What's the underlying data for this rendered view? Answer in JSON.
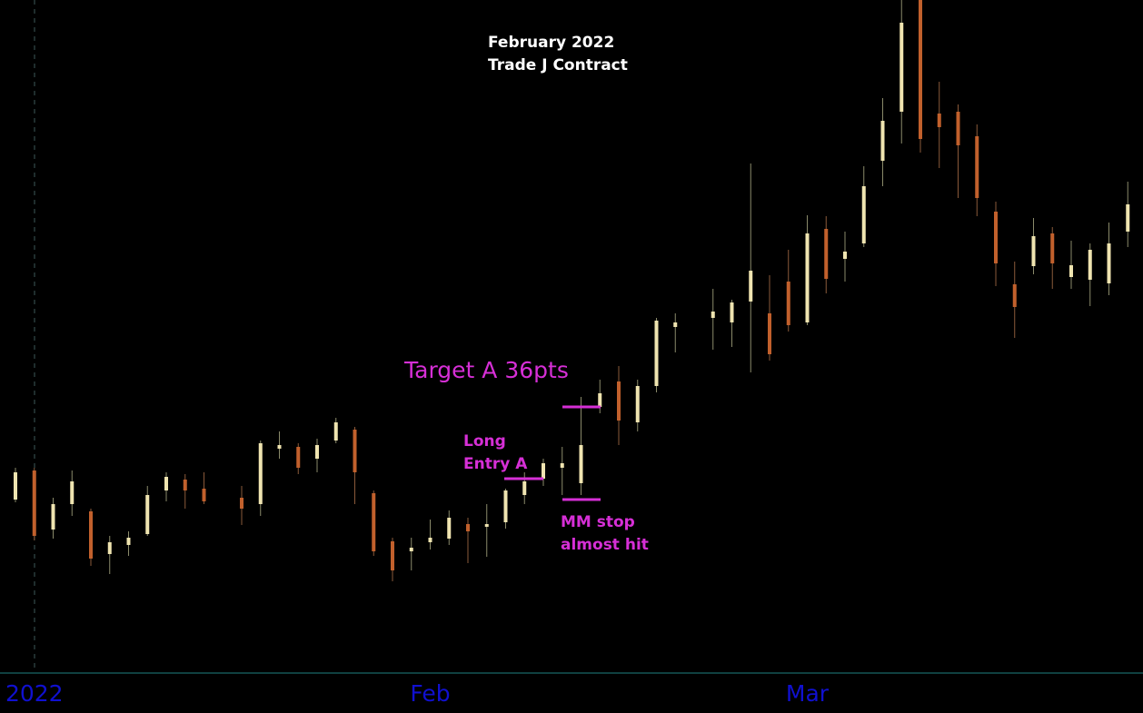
{
  "chart_data": {
    "type": "candlestick",
    "title": [
      "February 2022",
      "Trade J Contract"
    ],
    "categories": [
      null,
      "2022",
      null,
      null,
      null,
      null,
      null,
      null,
      null,
      null,
      null,
      null,
      null,
      null,
      null,
      null,
      null,
      null,
      null,
      null,
      null,
      null,
      "Feb",
      null,
      null,
      null,
      null,
      null,
      null,
      null,
      null,
      null,
      null,
      null,
      null,
      null,
      null,
      null,
      null,
      null,
      null,
      null,
      "Mar",
      null,
      null,
      null,
      null,
      null,
      null,
      null,
      null,
      null,
      null,
      null,
      null,
      null,
      null,
      null,
      null,
      null
    ],
    "open": [
      95,
      111,
      78.5,
      92.5,
      88.5,
      65,
      70,
      76,
      100,
      106,
      101,
      null,
      96,
      92.5,
      123,
      124,
      117.5,
      127.5,
      133.5,
      98.5,
      72,
      66.5,
      71.5,
      73.5,
      81.5,
      80,
      82.5,
      97.5,
      106.5,
      112.5,
      104,
      146,
      160,
      137.5,
      157.5,
      190,
      null,
      195,
      192.5,
      204,
      197.5,
      215,
      192.5,
      244,
      227.5,
      236,
      281.5,
      308.5,
      370,
      307.5,
      308.5,
      295,
      253.5,
      213.5,
      223.5,
      241.5,
      217.5,
      216,
      214,
      242.5
    ],
    "high": [
      112.5,
      112.5,
      96,
      111,
      90,
      75,
      77.5,
      102.5,
      110,
      109,
      110,
      null,
      102.5,
      127.5,
      132.5,
      126,
      128.5,
      140,
      135,
      100,
      74,
      74,
      84,
      89,
      85,
      92.5,
      101,
      110,
      117.5,
      124,
      151.5,
      161,
      168.5,
      161,
      195,
      197.5,
      null,
      211,
      205,
      280,
      218.5,
      232.5,
      251.5,
      251,
      242.5,
      278.5,
      316,
      370,
      370,
      325,
      312.5,
      301.5,
      259,
      226,
      250,
      245,
      237.5,
      236,
      247.5,
      270
    ],
    "low": [
      93.5,
      72.5,
      73.5,
      86,
      58.5,
      54,
      64,
      75,
      94,
      90,
      92.5,
      null,
      81,
      86,
      117.5,
      109,
      110,
      126,
      92.5,
      64,
      50,
      56,
      67.5,
      70,
      60,
      63.5,
      79,
      92.5,
      102.5,
      97.5,
      97.5,
      142.5,
      125,
      132.5,
      154,
      176,
      null,
      177.5,
      179,
      165,
      171.5,
      187.5,
      191,
      208.5,
      215,
      234,
      267.5,
      291,
      286,
      277.5,
      261,
      251,
      212.5,
      184,
      219,
      211,
      211,
      201.5,
      207.5,
      234
    ],
    "close": [
      110,
      75,
      92.5,
      105,
      62.5,
      71.5,
      74,
      97.5,
      107.5,
      100,
      94,
      null,
      90,
      126,
      125,
      112.5,
      125,
      137.5,
      110,
      66.5,
      56,
      68.5,
      74,
      85,
      77.5,
      81.5,
      100,
      105,
      115,
      115,
      125,
      153.5,
      138.5,
      157.5,
      193.5,
      192.5,
      null,
      198.5,
      203.5,
      221,
      175,
      191,
      241.5,
      216.5,
      231.5,
      267.5,
      303.5,
      357.5,
      293.5,
      300,
      290,
      261,
      225,
      201,
      240,
      225,
      224,
      232.5,
      236,
      257.5
    ],
    "up_color": "#efe4b0",
    "down_color": "#c1602c",
    "ylim": [
      0,
      370
    ],
    "annotations": [
      {
        "text": [
          "Long",
          "Entry A"
        ],
        "level": 106.5
      },
      {
        "text": [
          "Target A 36pts"
        ],
        "level": 146
      },
      {
        "text": [
          "MM stop",
          "almost hit"
        ],
        "level": 95
      }
    ],
    "annotation_color": "#d62fd6"
  }
}
